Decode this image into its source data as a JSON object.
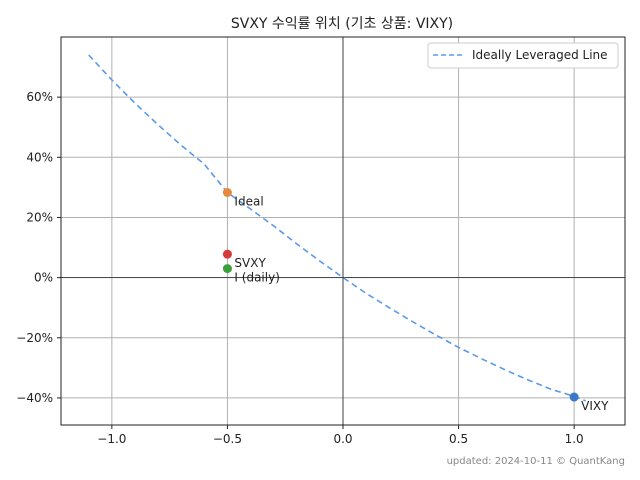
{
  "chart_data": {
    "type": "scatter",
    "title": "SVXY 수익률 위치 (기초 상품: VIXY)",
    "xlabel": "",
    "ylabel": "",
    "xlim": [
      -1.22,
      1.22
    ],
    "ylim": [
      -0.49,
      0.8
    ],
    "x_ticks": [
      {
        "value": -1.0,
        "label": "−1.0"
      },
      {
        "value": -0.5,
        "label": "−0.5"
      },
      {
        "value": 0.0,
        "label": "0.0"
      },
      {
        "value": 0.5,
        "label": "0.5"
      },
      {
        "value": 1.0,
        "label": "1.0"
      }
    ],
    "y_ticks": [
      {
        "value": -0.4,
        "label": "−40%"
      },
      {
        "value": -0.2,
        "label": "−20%"
      },
      {
        "value": 0.0,
        "label": "0%"
      },
      {
        "value": 0.2,
        "label": "20%"
      },
      {
        "value": 0.4,
        "label": "40%"
      },
      {
        "value": 0.6,
        "label": "60%"
      }
    ],
    "grid": true,
    "zero_lines": true,
    "legend": {
      "position": "top-right",
      "entries": [
        {
          "label": "Ideally Leveraged Line",
          "style": "dashed",
          "color": "#5b9ae8"
        }
      ]
    },
    "line": {
      "name": "Ideally Leveraged Line",
      "color": "#5b9ae8",
      "style": "dashed",
      "points": [
        [
          -1.1,
          0.74
        ],
        [
          -1.0,
          0.657
        ],
        [
          -0.9,
          0.58
        ],
        [
          -0.8,
          0.508
        ],
        [
          -0.7,
          0.44
        ],
        [
          -0.6,
          0.377
        ],
        [
          -0.5,
          0.283
        ],
        [
          -0.4,
          0.228
        ],
        [
          -0.3,
          0.172
        ],
        [
          -0.2,
          0.112
        ],
        [
          -0.1,
          0.055
        ],
        [
          0.0,
          0.0
        ],
        [
          0.1,
          -0.052
        ],
        [
          0.2,
          -0.1
        ],
        [
          0.3,
          -0.146
        ],
        [
          0.4,
          -0.19
        ],
        [
          0.5,
          -0.232
        ],
        [
          0.6,
          -0.27
        ],
        [
          0.7,
          -0.306
        ],
        [
          0.8,
          -0.34
        ],
        [
          0.9,
          -0.371
        ],
        [
          1.0,
          -0.395
        ],
        [
          1.05,
          -0.41
        ]
      ]
    },
    "points": [
      {
        "label": "VIXY",
        "x": 1.0,
        "y": -0.397,
        "color": "#3a78c9"
      },
      {
        "label": "Ideal",
        "x": -0.5,
        "y": 0.283,
        "color": "#e8893a"
      },
      {
        "label": "SVXY",
        "x": -0.5,
        "y": 0.078,
        "color": "#d63a3a"
      },
      {
        "label": "I (daily)",
        "x": -0.5,
        "y": 0.03,
        "color": "#3aa03a"
      }
    ],
    "footer": "updated: 2024-10-11 © QuantKang"
  }
}
